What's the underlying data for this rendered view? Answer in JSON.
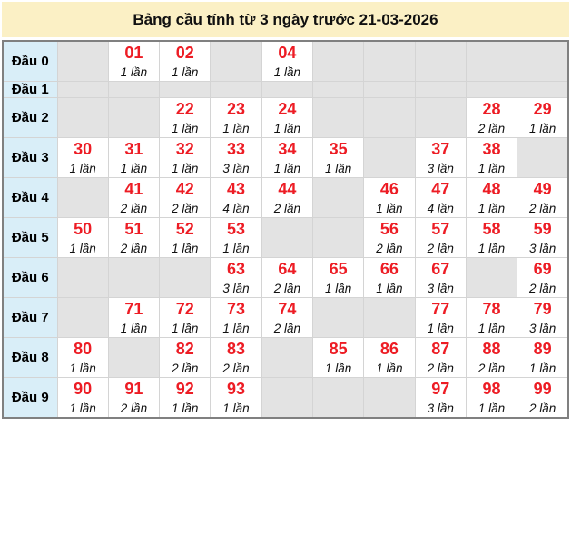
{
  "header": {
    "title": "Bảng cầu tính từ 3 ngày trước 21-03-2026"
  },
  "chart_data": {
    "type": "table",
    "title": "Bảng cầu tính từ 3 ngày trước 21-03-2026",
    "unit": "lần",
    "row_headers": [
      "Đầu 0",
      "Đầu 1",
      "Đầu 2",
      "Đầu 3",
      "Đầu 4",
      "Đầu 5",
      "Đầu 6",
      "Đầu 7",
      "Đầu 8",
      "Đầu 9"
    ],
    "rows": [
      {
        "label": "Đầu 0",
        "cells": [
          null,
          {
            "number": "01",
            "times": 1,
            "count": "1 lần"
          },
          {
            "number": "02",
            "times": 1,
            "count": "1 lần"
          },
          null,
          {
            "number": "04",
            "times": 1,
            "count": "1 lần"
          },
          null,
          null,
          null,
          null,
          null
        ]
      },
      {
        "label": "Đầu 1",
        "cells": [
          null,
          null,
          null,
          null,
          null,
          null,
          null,
          null,
          null,
          null
        ]
      },
      {
        "label": "Đầu 2",
        "cells": [
          null,
          null,
          {
            "number": "22",
            "times": 1,
            "count": "1 lần"
          },
          {
            "number": "23",
            "times": 1,
            "count": "1 lần"
          },
          {
            "number": "24",
            "times": 1,
            "count": "1 lần"
          },
          null,
          null,
          null,
          {
            "number": "28",
            "times": 2,
            "count": "2 lần"
          },
          {
            "number": "29",
            "times": 1,
            "count": "1 lần"
          }
        ]
      },
      {
        "label": "Đầu 3",
        "cells": [
          {
            "number": "30",
            "times": 1,
            "count": "1 lần"
          },
          {
            "number": "31",
            "times": 1,
            "count": "1 lần"
          },
          {
            "number": "32",
            "times": 1,
            "count": "1 lần"
          },
          {
            "number": "33",
            "times": 3,
            "count": "3 lần"
          },
          {
            "number": "34",
            "times": 1,
            "count": "1 lần"
          },
          {
            "number": "35",
            "times": 1,
            "count": "1 lần"
          },
          null,
          {
            "number": "37",
            "times": 3,
            "count": "3 lần"
          },
          {
            "number": "38",
            "times": 1,
            "count": "1 lần"
          },
          null
        ]
      },
      {
        "label": "Đầu 4",
        "cells": [
          null,
          {
            "number": "41",
            "times": 2,
            "count": "2 lần"
          },
          {
            "number": "42",
            "times": 2,
            "count": "2 lần"
          },
          {
            "number": "43",
            "times": 4,
            "count": "4 lần"
          },
          {
            "number": "44",
            "times": 2,
            "count": "2 lần"
          },
          null,
          {
            "number": "46",
            "times": 1,
            "count": "1 lần"
          },
          {
            "number": "47",
            "times": 4,
            "count": "4 lần"
          },
          {
            "number": "48",
            "times": 1,
            "count": "1 lần"
          },
          {
            "number": "49",
            "times": 2,
            "count": "2 lần"
          }
        ]
      },
      {
        "label": "Đầu 5",
        "cells": [
          {
            "number": "50",
            "times": 1,
            "count": "1 lần"
          },
          {
            "number": "51",
            "times": 2,
            "count": "2 lần"
          },
          {
            "number": "52",
            "times": 1,
            "count": "1 lần"
          },
          {
            "number": "53",
            "times": 1,
            "count": "1 lần"
          },
          null,
          null,
          {
            "number": "56",
            "times": 2,
            "count": "2 lần"
          },
          {
            "number": "57",
            "times": 2,
            "count": "2 lần"
          },
          {
            "number": "58",
            "times": 1,
            "count": "1 lần"
          },
          {
            "number": "59",
            "times": 3,
            "count": "3 lần"
          }
        ]
      },
      {
        "label": "Đầu 6",
        "cells": [
          null,
          null,
          null,
          {
            "number": "63",
            "times": 3,
            "count": "3 lần"
          },
          {
            "number": "64",
            "times": 2,
            "count": "2 lần"
          },
          {
            "number": "65",
            "times": 1,
            "count": "1 lần"
          },
          {
            "number": "66",
            "times": 1,
            "count": "1 lần"
          },
          {
            "number": "67",
            "times": 3,
            "count": "3 lần"
          },
          null,
          {
            "number": "69",
            "times": 2,
            "count": "2 lần"
          }
        ]
      },
      {
        "label": "Đầu 7",
        "cells": [
          null,
          {
            "number": "71",
            "times": 1,
            "count": "1 lần"
          },
          {
            "number": "72",
            "times": 1,
            "count": "1 lần"
          },
          {
            "number": "73",
            "times": 1,
            "count": "1 lần"
          },
          {
            "number": "74",
            "times": 2,
            "count": "2 lần"
          },
          null,
          null,
          {
            "number": "77",
            "times": 1,
            "count": "1 lần"
          },
          {
            "number": "78",
            "times": 1,
            "count": "1 lần"
          },
          {
            "number": "79",
            "times": 3,
            "count": "3 lần"
          }
        ]
      },
      {
        "label": "Đầu 8",
        "cells": [
          {
            "number": "80",
            "times": 1,
            "count": "1 lần"
          },
          null,
          {
            "number": "82",
            "times": 2,
            "count": "2 lần"
          },
          {
            "number": "83",
            "times": 2,
            "count": "2 lần"
          },
          null,
          {
            "number": "85",
            "times": 1,
            "count": "1 lần"
          },
          {
            "number": "86",
            "times": 1,
            "count": "1 lần"
          },
          {
            "number": "87",
            "times": 2,
            "count": "2 lần"
          },
          {
            "number": "88",
            "times": 2,
            "count": "2 lần"
          },
          {
            "number": "89",
            "times": 1,
            "count": "1 lần"
          }
        ]
      },
      {
        "label": "Đầu 9",
        "cells": [
          {
            "number": "90",
            "times": 1,
            "count": "1 lần"
          },
          {
            "number": "91",
            "times": 2,
            "count": "2 lần"
          },
          {
            "number": "92",
            "times": 1,
            "count": "1 lần"
          },
          {
            "number": "93",
            "times": 1,
            "count": "1 lần"
          },
          null,
          null,
          null,
          {
            "number": "97",
            "times": 3,
            "count": "3 lần"
          },
          {
            "number": "98",
            "times": 1,
            "count": "1 lần"
          },
          {
            "number": "99",
            "times": 2,
            "count": "2 lần"
          }
        ]
      }
    ]
  },
  "colors": {
    "title_bg": "#fbf0c5",
    "title_text": "#101010",
    "label_bg": "#d9eef8",
    "empty_cell_bg": "#e3e3e3",
    "filled_cell_bg": "#ffffff",
    "number_red": "#ed1c24",
    "grid_line": "#d4d4d4",
    "outer_border": "#808080"
  }
}
